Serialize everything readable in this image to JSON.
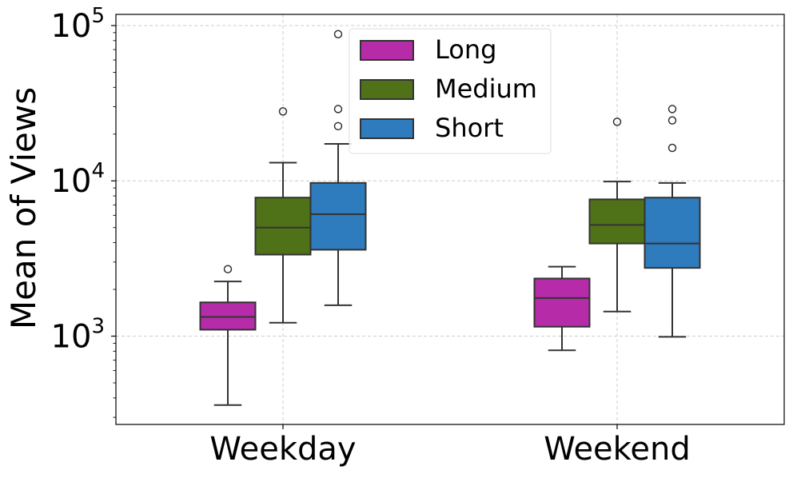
{
  "chart_data": {
    "type": "box",
    "title": "",
    "xlabel": "",
    "ylabel": "Mean of Views",
    "yscale": "log",
    "ylim": [
      270,
      118000
    ],
    "grid": true,
    "legend_position": "top-center",
    "categories": [
      "Weekday",
      "Weekend"
    ],
    "y_ticks": [
      {
        "value": 1000,
        "base": "10",
        "exp": "3"
      },
      {
        "value": 10000,
        "base": "10",
        "exp": "4"
      },
      {
        "value": 100000,
        "base": "10",
        "exp": "5"
      }
    ],
    "series": [
      {
        "name": "Long",
        "color": "#b62ba8",
        "boxes": [
          {
            "category": "Weekday",
            "whislo": 360,
            "q1": 1100,
            "med": 1330,
            "q3": 1650,
            "whishi": 2250,
            "fliers": [
              2700
            ]
          },
          {
            "category": "Weekend",
            "whislo": 810,
            "q1": 1150,
            "med": 1760,
            "q3": 2350,
            "whishi": 2800,
            "fliers": []
          }
        ]
      },
      {
        "name": "Medium",
        "color": "#4f7218",
        "boxes": [
          {
            "category": "Weekday",
            "whislo": 1220,
            "q1": 3350,
            "med": 5000,
            "q3": 7800,
            "whishi": 13100,
            "fliers": [
              28000
            ]
          },
          {
            "category": "Weekend",
            "whislo": 1440,
            "q1": 3950,
            "med": 5200,
            "q3": 7600,
            "whishi": 9900,
            "fliers": [
              24000
            ]
          }
        ]
      },
      {
        "name": "Short",
        "color": "#2e7bbd",
        "boxes": [
          {
            "category": "Weekday",
            "whislo": 1580,
            "q1": 3600,
            "med": 6100,
            "q3": 9700,
            "whishi": 17300,
            "fliers": [
              22500,
              29000,
              88000
            ]
          },
          {
            "category": "Weekend",
            "whislo": 990,
            "q1": 2750,
            "med": 3950,
            "q3": 7800,
            "whishi": 9700,
            "fliers": [
              16300,
              24500,
              29000
            ]
          }
        ]
      }
    ]
  }
}
